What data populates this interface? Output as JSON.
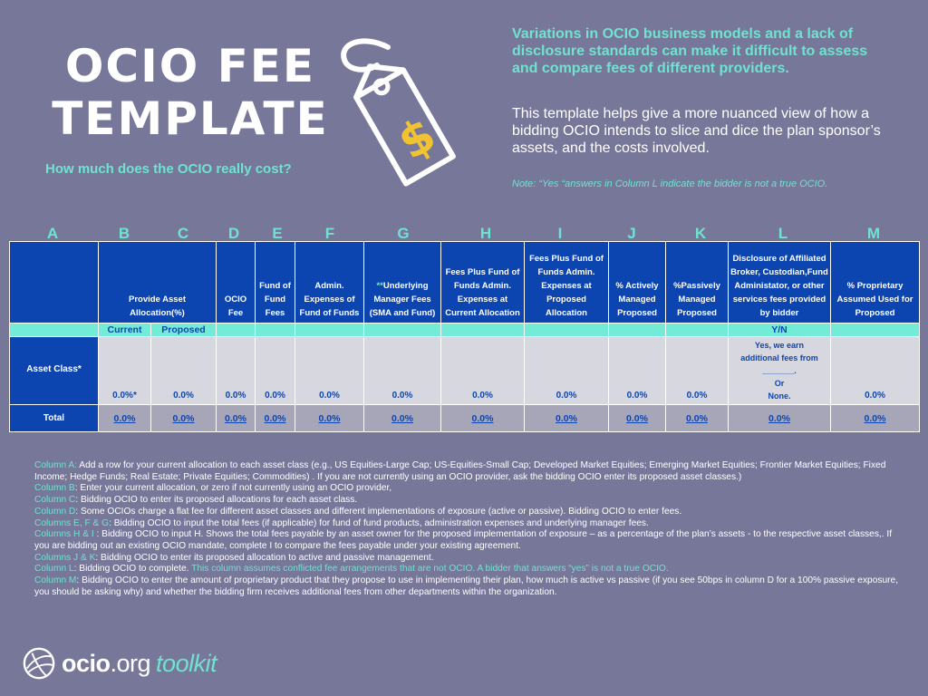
{
  "header": {
    "title": "OCIO FEE TEMPLATE",
    "subtitle": "How much does the OCIO really cost?",
    "intro_highlight": "Variations in OCIO business models and a lack of disclosure standards can make it difficult to assess and compare fees of different providers.",
    "intro_body": "This template helps give a more nuanced view of how a bidding OCIO intends to slice and dice the plan sponsor’s assets, and the costs involved.",
    "note": "Note: “Yes “answers in Column L indicate the bidder is not a true OCIO."
  },
  "icons": {
    "price_tag": "price-tag-dollar-icon",
    "logo": "ocio-org-logo-icon"
  },
  "colors": {
    "background": "#77779a",
    "accent": "#6fe3cf",
    "header_blue": "#0d45b0"
  },
  "column_letters": [
    "A",
    "B",
    "C",
    "D",
    "E",
    "F",
    "G",
    "H",
    "I",
    "J",
    "K",
    "L",
    "M"
  ],
  "table": {
    "headers": {
      "a": "",
      "b": "Provide Asset Allocation(%)",
      "d": "OCIO Fee",
      "e": "Fund of Fund Fees",
      "f": "Admin. Expenses of Fund of Funds",
      "g_star": "**",
      "g": "Underlying Manager Fees (SMA and Fund)",
      "h": "Fees Plus Fund of Funds Admin. Expenses at Current Allocation",
      "i": "Fees Plus Fund of Funds Admin. Expenses at Proposed Allocation",
      "j": "% Actively Managed Proposed",
      "k": "%Passively Managed Proposed",
      "l": "Disclosure of Affiliated Broker, Custodian,Fund Administator, or other services fees provided by bidder",
      "m": "% Proprietary Assumed Used for Proposed"
    },
    "subheaders": {
      "current": "Current",
      "proposed": "Proposed",
      "yn": "Y/N"
    },
    "asset_row": {
      "label": "Asset Class*",
      "values": [
        "0.0%*",
        "0.0%",
        "0.0%",
        "0.0%",
        "0.0%",
        "0.0%",
        "0.0%",
        "0.0%",
        "0.0%",
        "0.0%"
      ],
      "disclosure": [
        "Yes, we earn",
        "additional fees from",
        "_______.",
        "Or",
        "None."
      ],
      "m": "0.0%"
    },
    "total_row": {
      "label": "Total",
      "values": [
        "0.0%",
        "0.0%",
        "0.0%",
        "0.0%",
        "0.0%",
        "0.0%",
        "0.0%",
        "0.0%",
        "0.0%",
        "0.0%",
        "0.0%",
        "0.0%"
      ]
    }
  },
  "notes": [
    {
      "key": "Column A:",
      "text": "  Add a row for your current allocation to each asset class (e.g., US Equities-Large Cap; US-Equities-Small Cap; Developed Market Equities; Emerging Market Equities; Frontier Market Equities; Fixed Income; Hedge Funds; Real Estate; Private Equities; Commodities) .  If you are not currently using an OCIO provider, ask the bidding OCIO enter its proposed asset classes.)"
    },
    {
      "key": "Column B",
      "text": ": Enter your current allocation, or zero if not currently using an OCIO provider,"
    },
    {
      "key": "Column C",
      "text": ": Bidding OCIO to enter its proposed allocations for each asset class."
    },
    {
      "key": "Column D",
      "text": ": Some OCIOs charge a flat fee for different asset classes and different implementations of exposure (active or passive).  Bidding OCIO to enter fees."
    },
    {
      "key": "Columns E, F & G",
      "text": ": Bidding OCIO to input the total fees (if applicable) for fund of fund products, administration expenses and underlying manager fees."
    },
    {
      "key": "Columns H & I",
      "text": " : Bidding OCIO to input H.  Shows the total fees payable by an asset owner for the proposed implementation of exposure – as a percentage of the plan’s assets - to the respective asset classes,.  If you are bidding out an existing OCIO mandate, complete I to compare the fees payable under your existing agreement."
    },
    {
      "key": "Columns J & K",
      "text": ":  Bidding OCIO to enter its proposed allocation to active and passive management."
    },
    {
      "key": "Column L",
      "text": ":  Bidding OCIO to complete.  ",
      "highlight": "This column assumes conflicted fee arrangements that are not OCIO.  A bidder that answers “yes” is not a true OCIO."
    },
    {
      "key": "Column M",
      "text": ":  Bidding OCIO to enter the amount of proprietary product that they propose to use in implementing their plan, how much is active vs passive (if you see 50bps in column D for a 100% passive exposure, you should be asking why) and whether the bidding firm receives additional fees from other departments within the organization."
    }
  ],
  "logo": {
    "brand": "ocio",
    "domain": ".org",
    "product": "toolkit"
  }
}
